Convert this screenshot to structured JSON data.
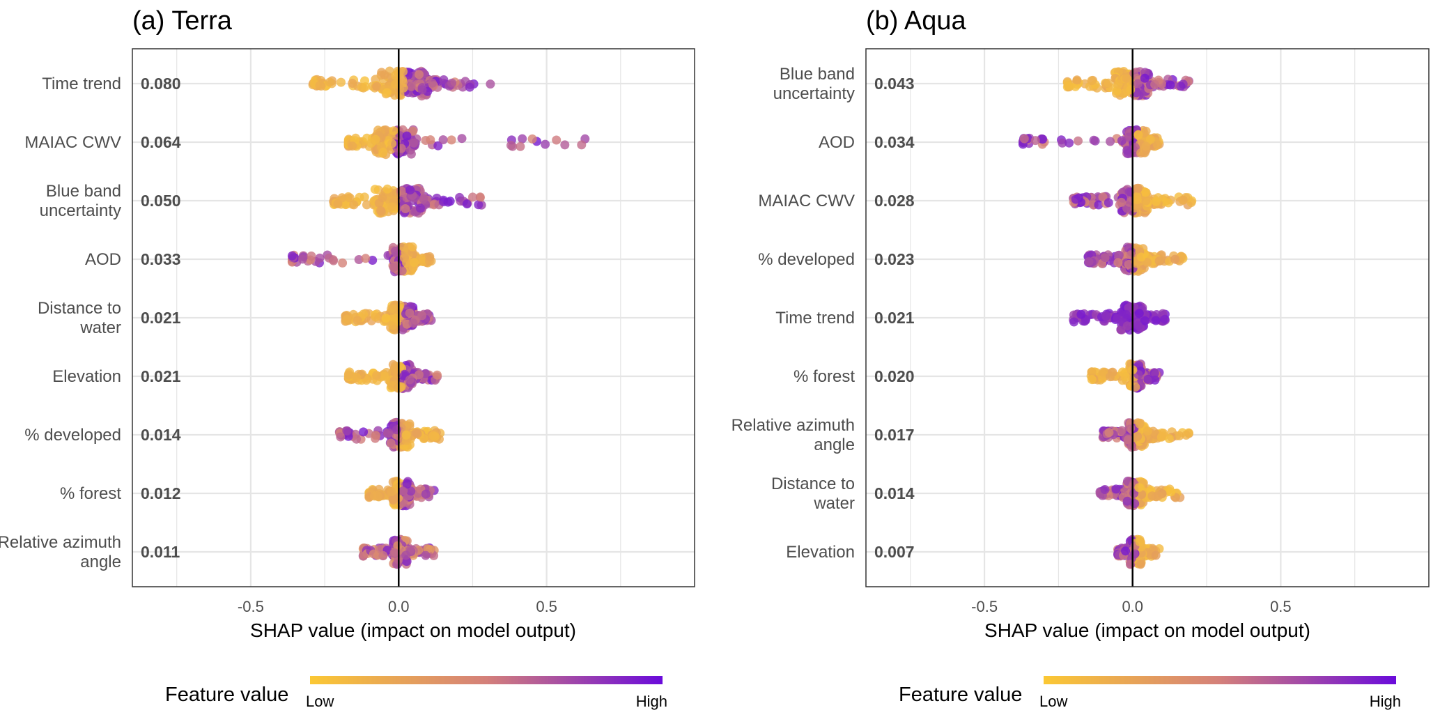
{
  "chart_data": [
    {
      "type": "scatter",
      "subtype": "shap-beeswarm",
      "title": "(a) Terra",
      "xlabel": "SHAP value (impact on model output)",
      "xlim": [
        -0.9,
        1.0
      ],
      "xticks": [
        -0.5,
        0.0,
        0.5
      ],
      "xtick_labels": [
        "-0.5",
        "0.0",
        "0.5"
      ],
      "grid": true,
      "zero_line": 0.0,
      "features": [
        {
          "name": "Time trend",
          "importance": "0.080",
          "min": -0.29,
          "max": 0.31,
          "low_side": "negative",
          "core": [
            -0.06,
            0.1
          ]
        },
        {
          "name": "MAIAC CWV",
          "importance": "0.064",
          "min": -0.17,
          "max": 0.63,
          "low_side": "negative",
          "core": [
            -0.08,
            0.05
          ]
        },
        {
          "name": "Blue band uncertainty",
          "importance": "0.050",
          "min": -0.22,
          "max": 0.28,
          "low_side": "negative",
          "core": [
            -0.08,
            0.08
          ]
        },
        {
          "name": "AOD",
          "importance": "0.033",
          "min": -0.36,
          "max": 0.11,
          "low_side": "positive",
          "core": [
            -0.02,
            0.05
          ]
        },
        {
          "name": "Distance to water",
          "importance": "0.021",
          "min": -0.18,
          "max": 0.11,
          "low_side": "negative",
          "core": [
            -0.03,
            0.05
          ]
        },
        {
          "name": "Elevation",
          "importance": "0.021",
          "min": -0.17,
          "max": 0.13,
          "low_side": "negative",
          "core": [
            -0.03,
            0.05
          ]
        },
        {
          "name": "% developed",
          "importance": "0.014",
          "min": -0.2,
          "max": 0.14,
          "low_side": "positive",
          "core": [
            -0.03,
            0.04
          ]
        },
        {
          "name": "% forest",
          "importance": "0.012",
          "min": -0.1,
          "max": 0.12,
          "low_side": "negative",
          "core": [
            -0.02,
            0.04
          ]
        },
        {
          "name": "Relative azimuth angle",
          "importance": "0.011",
          "min": -0.12,
          "max": 0.12,
          "low_side": "mixed",
          "core": [
            -0.02,
            0.03
          ]
        }
      ],
      "colorbar": {
        "title": "Feature value",
        "low_label": "Low",
        "high_label": "High"
      }
    },
    {
      "type": "scatter",
      "subtype": "shap-beeswarm",
      "title": "(b) Aqua",
      "xlabel": "SHAP value (impact on model output)",
      "xlim": [
        -0.9,
        1.0
      ],
      "xticks": [
        -0.5,
        0.0,
        0.5
      ],
      "xtick_labels": [
        "-0.5",
        "0.0",
        "0.5"
      ],
      "grid": true,
      "zero_line": 0.0,
      "features": [
        {
          "name": "Blue band uncertainty",
          "importance": "0.043",
          "min": -0.22,
          "max": 0.19,
          "low_side": "negative",
          "core": [
            -0.06,
            0.06
          ]
        },
        {
          "name": "AOD",
          "importance": "0.034",
          "min": -0.37,
          "max": 0.09,
          "low_side": "positive",
          "core": [
            -0.02,
            0.05
          ]
        },
        {
          "name": "MAIAC CWV",
          "importance": "0.028",
          "min": -0.2,
          "max": 0.2,
          "low_side": "positive",
          "core": [
            -0.04,
            0.05
          ]
        },
        {
          "name": "% developed",
          "importance": "0.023",
          "min": -0.15,
          "max": 0.17,
          "low_side": "positive",
          "core": [
            -0.03,
            0.04
          ]
        },
        {
          "name": "Time trend",
          "importance": "0.021",
          "min": -0.2,
          "max": 0.11,
          "low_side": "none",
          "core": [
            -0.04,
            0.04
          ]
        },
        {
          "name": "% forest",
          "importance": "0.020",
          "min": -0.14,
          "max": 0.09,
          "low_side": "negative",
          "core": [
            -0.01,
            0.03
          ]
        },
        {
          "name": "Relative azimuth angle",
          "importance": "0.017",
          "min": -0.1,
          "max": 0.19,
          "low_side": "positive",
          "core": [
            -0.02,
            0.04
          ]
        },
        {
          "name": "Distance to water",
          "importance": "0.014",
          "min": -0.11,
          "max": 0.16,
          "low_side": "positive",
          "core": [
            -0.02,
            0.04
          ]
        },
        {
          "name": "Elevation",
          "importance": "0.007",
          "min": -0.05,
          "max": 0.09,
          "low_side": "positive",
          "core": [
            -0.01,
            0.03
          ]
        }
      ],
      "colorbar": {
        "title": "Feature value",
        "low_label": "Low",
        "high_label": "High"
      }
    }
  ],
  "colors": {
    "low": "#FBC834",
    "mid": "#D4807A",
    "high": "#6A0BDB",
    "grid": "#E5E5E5",
    "text": "#4D4D4D"
  }
}
